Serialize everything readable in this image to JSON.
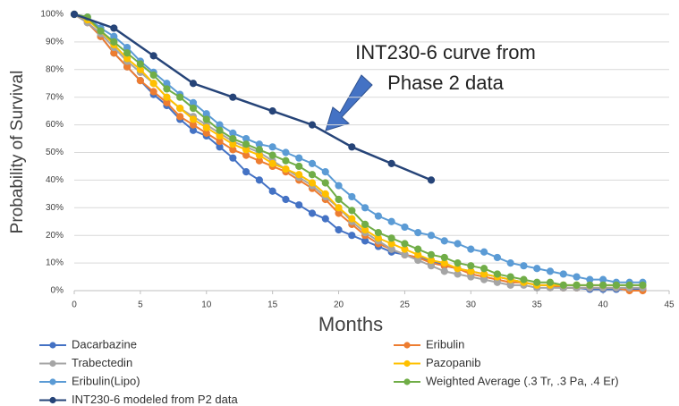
{
  "chart_data": {
    "type": "line",
    "x_label": "Months",
    "y_label": "Probability of Survival",
    "annotation": [
      "INT230-6 curve from",
      "Phase 2 data"
    ],
    "xlim": [
      0,
      45
    ],
    "xticks": [
      0,
      5,
      10,
      15,
      20,
      25,
      30,
      35,
      40,
      45
    ],
    "ylim": [
      0,
      100
    ],
    "yticks": [
      {
        "value": 0,
        "label": "0%"
      },
      {
        "value": 10,
        "label": "10%"
      },
      {
        "value": 20,
        "label": "20%"
      },
      {
        "value": 30,
        "label": "30%"
      },
      {
        "value": 40,
        "label": "40%"
      },
      {
        "value": 50,
        "label": "50%"
      },
      {
        "value": 60,
        "label": "60%"
      },
      {
        "value": 70,
        "label": "70%"
      },
      {
        "value": 80,
        "label": "80%"
      },
      {
        "value": 90,
        "label": "90%"
      },
      {
        "value": 100,
        "label": "100%"
      }
    ],
    "grid": true,
    "x": [
      0,
      1,
      2,
      3,
      4,
      5,
      6,
      7,
      8,
      9,
      10,
      11,
      12,
      13,
      14,
      15,
      16,
      17,
      18,
      19,
      20,
      21,
      22,
      23,
      24,
      25,
      26,
      27,
      28,
      29,
      30,
      31,
      32,
      33,
      34,
      35,
      36,
      37,
      38,
      39,
      40,
      41,
      42,
      43
    ],
    "series": [
      {
        "name": "Dacarbazine",
        "color": "#4472c4",
        "values": [
          100,
          97,
          92,
          86,
          81,
          76,
          71,
          67,
          62,
          58,
          56,
          52,
          48,
          43,
          40,
          36,
          33,
          31,
          28,
          26,
          22,
          20,
          18,
          16,
          14,
          13,
          12,
          11,
          9,
          8,
          7,
          6,
          5,
          4,
          3,
          2,
          2,
          1,
          1,
          0.5,
          0.5,
          0.5,
          0.5,
          0.5
        ]
      },
      {
        "name": "Eribulin",
        "color": "#ed7d31",
        "values": [
          100,
          97,
          92,
          86,
          81,
          76,
          72,
          68,
          63,
          60,
          57,
          54,
          51,
          49,
          47,
          45,
          43,
          40,
          37,
          33,
          28,
          24,
          20,
          17,
          15,
          13,
          12,
          10,
          9,
          8,
          6,
          5,
          4,
          3,
          3,
          2,
          2,
          1,
          1,
          1,
          1,
          1,
          0,
          0
        ]
      },
      {
        "name": "Trabectedin",
        "color": "#a5a5a5",
        "values": [
          100,
          97,
          93,
          88,
          83,
          79,
          75,
          70,
          66,
          63,
          60,
          57,
          54,
          52,
          50,
          47,
          44,
          41,
          38,
          34,
          30,
          25,
          21,
          18,
          15,
          13,
          11,
          9,
          7,
          6,
          5,
          4,
          3,
          2,
          2,
          1,
          1,
          1,
          1,
          1,
          1,
          1,
          1,
          1
        ]
      },
      {
        "name": "Pazopanib",
        "color": "#ffc000",
        "values": [
          100,
          98,
          94,
          89,
          84,
          80,
          75,
          70,
          66,
          62,
          59,
          56,
          53,
          51,
          49,
          46,
          44,
          42,
          39,
          35,
          30,
          26,
          22,
          19,
          17,
          15,
          13,
          11,
          10,
          8,
          7,
          6,
          5,
          4,
          3,
          2,
          2,
          2,
          2,
          2,
          2,
          2,
          2,
          2
        ]
      },
      {
        "name": "Eribulin(Lipo)",
        "color": "#5b9bd5",
        "values": [
          100,
          99,
          95,
          92,
          88,
          83,
          79,
          75,
          71,
          68,
          64,
          60,
          57,
          55,
          53,
          52,
          50,
          48,
          46,
          43,
          38,
          34,
          30,
          27,
          25,
          23,
          21,
          20,
          18,
          17,
          15,
          14,
          12,
          10,
          9,
          8,
          7,
          6,
          5,
          4,
          4,
          3,
          3,
          3
        ]
      },
      {
        "name": "Weighted Average (.3 Tr, .3 Pa, .4 Er)",
        "color": "#70ad47",
        "values": [
          100,
          99,
          94,
          90,
          86,
          82,
          78,
          73,
          70,
          66,
          62,
          58,
          55,
          53,
          51,
          49,
          47,
          45,
          42,
          39,
          33,
          29,
          24,
          21,
          19,
          17,
          15,
          13,
          12,
          10,
          9,
          8,
          6,
          5,
          4,
          3,
          3,
          2,
          2,
          2,
          2,
          2,
          2,
          2
        ]
      },
      {
        "name": "INT230-6 modeled from P2 data",
        "color": "#264478",
        "x": [
          0,
          3,
          6,
          9,
          12,
          15,
          18,
          21,
          24,
          27
        ],
        "values": [
          100,
          95,
          85,
          75,
          70,
          65,
          60,
          52,
          46,
          40
        ]
      }
    ]
  }
}
